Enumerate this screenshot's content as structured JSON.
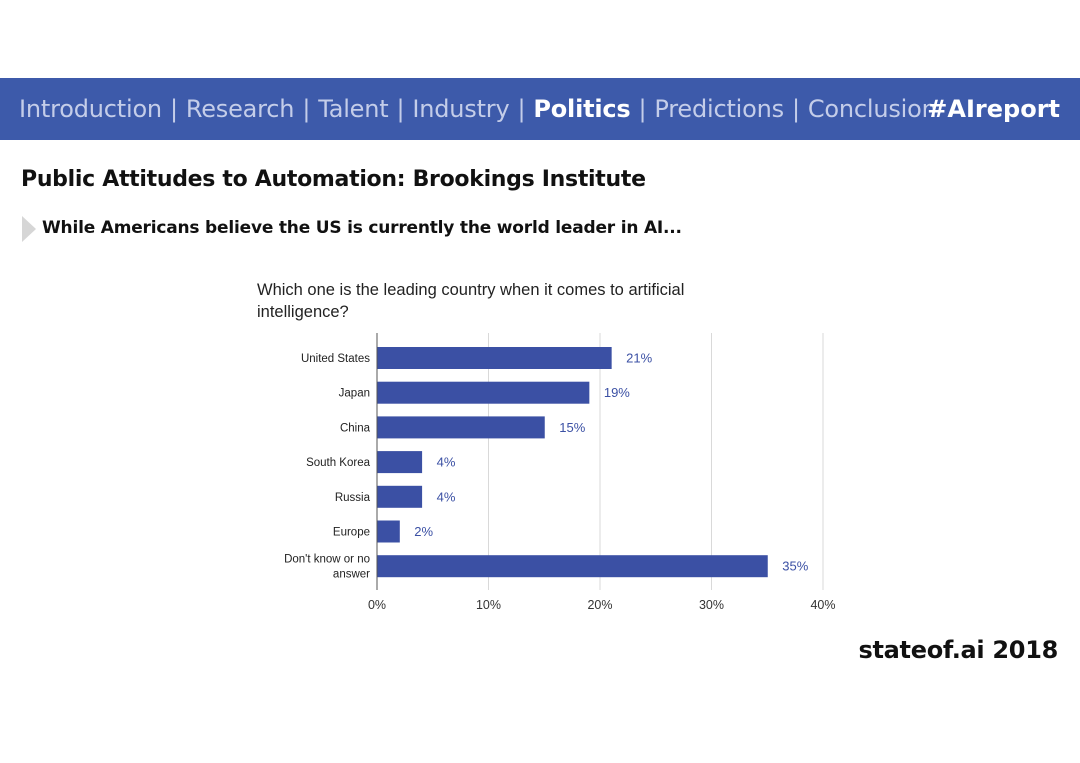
{
  "nav": {
    "items": [
      {
        "label": "Introduction",
        "active": false
      },
      {
        "label": "Research",
        "active": false
      },
      {
        "label": "Talent",
        "active": false
      },
      {
        "label": "Industry",
        "active": false
      },
      {
        "label": "Politics",
        "active": true
      },
      {
        "label": "Predictions",
        "active": false
      },
      {
        "label": "Conclusion",
        "active": false
      }
    ],
    "separator": "|",
    "hashtag": "#AIreport"
  },
  "page": {
    "title": "Public Attitudes to Automation: Brookings Institute",
    "subtitle": "While Americans believe the US is currently the world leader in AI..."
  },
  "chart_data": {
    "type": "bar",
    "orientation": "horizontal",
    "title": "Which one is the leading country when it comes to artificial intelligence?",
    "categories": [
      "United States",
      "Japan",
      "China",
      "South Korea",
      "Russia",
      "Europe",
      "Don't know or no answer"
    ],
    "values": [
      21,
      19,
      15,
      4,
      4,
      2,
      35
    ],
    "value_labels": [
      "21%",
      "19%",
      "15%",
      "4%",
      "4%",
      "2%",
      "35%"
    ],
    "xlim": [
      0,
      40
    ],
    "xticks": [
      "0%",
      "10%",
      "20%",
      "30%",
      "40%"
    ],
    "grid": true,
    "colors": {
      "bar": "#3b50a4",
      "label": "#3b50a4",
      "grid": "#d9d9d9"
    }
  },
  "footer": {
    "text": "stateof.ai 2018"
  }
}
